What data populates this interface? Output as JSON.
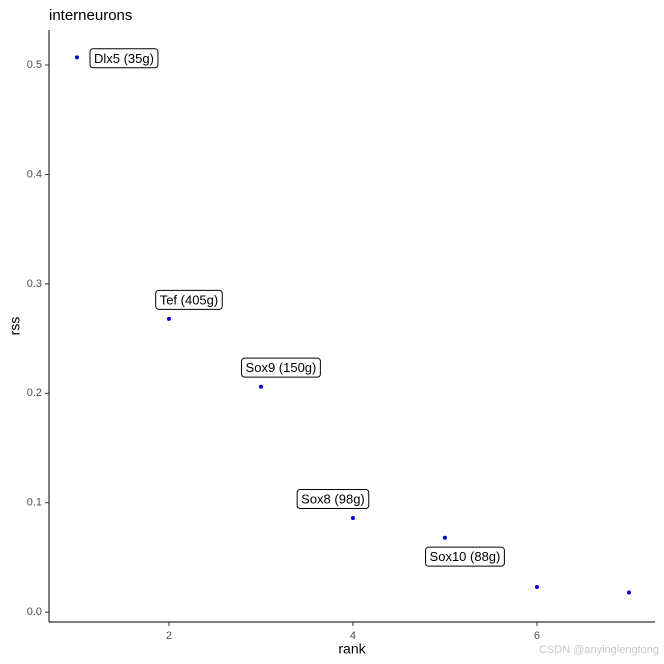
{
  "chart_data": {
    "type": "scatter",
    "title": "interneurons",
    "x_label": "rank",
    "y_label": "rss",
    "x": [
      1,
      2,
      3,
      4,
      5,
      6,
      7
    ],
    "values": [
      0.507,
      0.268,
      0.206,
      0.086,
      0.068,
      0.023,
      0.018
    ],
    "labels": [
      "Dlx5 (35g)",
      "Tef (405g)",
      "Sox9 (150g)",
      "Sox8 (98g)",
      "Sox10 (88g)",
      null,
      null
    ],
    "color": "#0000cc",
    "xlim": [
      0.696,
      7.283
    ],
    "ylim": [
      -0.009,
      0.532
    ],
    "xticks": [
      2,
      4,
      6
    ],
    "yticks": [
      {
        "value": 0,
        "label": "0.0"
      },
      0.1,
      0.2,
      0.3,
      0.4,
      0.5
    ],
    "grid": false,
    "watermark": "CSDN @anyinglengtong"
  }
}
